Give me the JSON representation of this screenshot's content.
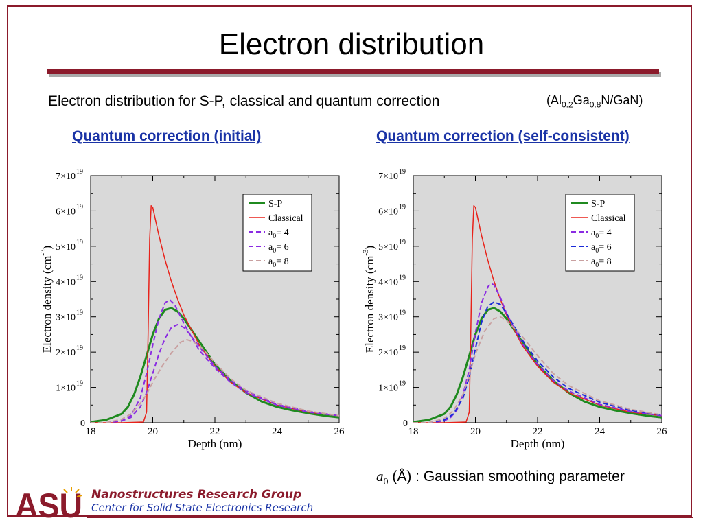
{
  "slide": {
    "title": "Electron distribution",
    "subtitle": "Electron distribution for S-P, classical and quantum correction",
    "formula": {
      "open": "(Al",
      "sub1": "0.2",
      "mid": "Ga",
      "sub2": "0.8",
      "close": "N/GaN)"
    },
    "heading_left": "Quantum correction (initial)",
    "heading_right": "Quantum correction (self-consistent)",
    "note": {
      "symbol": "a",
      "symbol_sub": "0",
      "text": " (Å) : Gaussian smoothing parameter"
    },
    "footer": {
      "logo": "ASU",
      "group": "Nanostructures Research Group",
      "center": "Center for Solid State Electronics Research"
    }
  },
  "colors": {
    "accent": "#8b1a2b",
    "heading_blue": "#1a33a6",
    "plot_bg": "#d9d9d9",
    "sp": "#1f8a1f",
    "classical": "#e8221a",
    "a4": "#8a2be2",
    "a6_left": "#8a2be2",
    "a6_right": "#1a2bd9",
    "a8": "#c9a0a0"
  },
  "chart_data": [
    {
      "type": "line",
      "xlabel": "Depth (nm)",
      "ylabel": "Electron density (cm",
      "ylabel_exp": "-3",
      "ylabel_close": ")",
      "xlim": [
        18,
        26
      ],
      "ylim": [
        0,
        7e+19
      ],
      "x_ticks": [
        "18",
        "20",
        "22",
        "24",
        "26"
      ],
      "y_ticks": [
        {
          "mant": "0",
          "exp": ""
        },
        {
          "mant": "1×10",
          "exp": "19"
        },
        {
          "mant": "2×10",
          "exp": "19"
        },
        {
          "mant": "3×10",
          "exp": "19"
        },
        {
          "mant": "4×10",
          "exp": "19"
        },
        {
          "mant": "5×10",
          "exp": "19"
        },
        {
          "mant": "6×10",
          "exp": "19"
        },
        {
          "mant": "7×10",
          "exp": "19"
        }
      ],
      "legend_position": "top-right",
      "series": [
        {
          "name": "S-P",
          "style": "solid",
          "x": [
            18.0,
            18.5,
            19.0,
            19.2,
            19.4,
            19.6,
            19.8,
            20.0,
            20.2,
            20.4,
            20.6,
            20.8,
            21.0,
            21.5,
            22.0,
            22.5,
            23.0,
            23.5,
            24.0,
            24.5,
            25.0,
            25.5,
            26.0
          ],
          "y": [
            2e+17,
            8e+17,
            2.5e+18,
            4.5e+18,
            8e+18,
            1.3e+19,
            1.9e+19,
            2.5e+19,
            2.95e+19,
            3.2e+19,
            3.25e+19,
            3.15e+19,
            2.95e+19,
            2.3e+19,
            1.65e+19,
            1.2e+19,
            8.5e+18,
            6e+18,
            4.5e+18,
            3.5e+18,
            2.7e+18,
            2e+18,
            1.5e+18
          ]
        },
        {
          "name": "Classical",
          "style": "solid",
          "x": [
            18.0,
            19.0,
            19.7,
            19.8,
            19.85,
            19.9,
            19.95,
            20.0,
            20.2,
            20.4,
            20.6,
            20.8,
            21.0,
            21.5,
            22.0,
            22.5,
            23.0,
            24.0,
            25.0,
            26.0
          ],
          "y": [
            0,
            0,
            2e+17,
            3e+18,
            2.5e+19,
            5.2e+19,
            6.15e+19,
            6.1e+19,
            5.3e+19,
            4.6e+19,
            4e+19,
            3.5e+19,
            3.05e+19,
            2.2e+19,
            1.6e+19,
            1.15e+19,
            8.5e+18,
            5e+18,
            3e+18,
            2e+18
          ]
        },
        {
          "name": "a0= 4",
          "style": "dashed",
          "x": [
            18.0,
            18.5,
            19.0,
            19.3,
            19.6,
            19.8,
            20.0,
            20.2,
            20.4,
            20.55,
            20.7,
            20.9,
            21.1,
            21.5,
            22.0,
            22.5,
            23.0,
            24.0,
            25.0,
            26.0
          ],
          "y": [
            0,
            0,
            5e+17,
            2e+18,
            7e+18,
            1.4e+19,
            2.2e+19,
            2.95e+19,
            3.4e+19,
            3.48e+19,
            3.35e+19,
            3e+19,
            2.65e+19,
            2.05e+19,
            1.55e+19,
            1.15e+19,
            8.5e+18,
            5e+18,
            3e+18,
            2e+18
          ]
        },
        {
          "name": "a0= 6",
          "style": "dashed",
          "x": [
            18.0,
            18.5,
            19.0,
            19.3,
            19.6,
            19.8,
            20.0,
            20.2,
            20.4,
            20.6,
            20.8,
            21.0,
            21.2,
            21.5,
            22.0,
            22.5,
            23.0,
            24.0,
            25.0,
            26.0
          ],
          "y": [
            0,
            0,
            5e+17,
            1.5e+18,
            4.5e+18,
            8.5e+18,
            1.4e+19,
            1.95e+19,
            2.4e+19,
            2.7e+19,
            2.78e+19,
            2.7e+19,
            2.5e+19,
            2.15e+19,
            1.6e+19,
            1.2e+19,
            9e+18,
            5.2e+18,
            3.2e+18,
            2e+18
          ]
        },
        {
          "name": "a0= 8",
          "style": "dashed",
          "x": [
            18.0,
            18.5,
            19.0,
            19.3,
            19.6,
            19.8,
            20.0,
            20.3,
            20.6,
            20.9,
            21.1,
            21.3,
            21.6,
            22.0,
            22.5,
            23.0,
            24.0,
            25.0,
            26.0
          ],
          "y": [
            0,
            0,
            1e+18,
            2.5e+18,
            5.5e+18,
            8e+18,
            1.15e+19,
            1.6e+19,
            1.98e+19,
            2.28e+19,
            2.35e+19,
            2.3e+19,
            2.1e+19,
            1.7e+19,
            1.25e+19,
            9.2e+18,
            5.5e+18,
            3.3e+18,
            2e+18
          ]
        }
      ]
    },
    {
      "type": "line",
      "xlabel": "Depth (nm)",
      "ylabel": "Electron density (cm",
      "ylabel_exp": "-3",
      "ylabel_close": ")",
      "xlim": [
        18,
        26
      ],
      "ylim": [
        0,
        7e+19
      ],
      "x_ticks": [
        "18",
        "20",
        "22",
        "24",
        "26"
      ],
      "y_ticks": [
        {
          "mant": "0",
          "exp": ""
        },
        {
          "mant": "1×10",
          "exp": "19"
        },
        {
          "mant": "2×10",
          "exp": "19"
        },
        {
          "mant": "3×10",
          "exp": "19"
        },
        {
          "mant": "4×10",
          "exp": "19"
        },
        {
          "mant": "5×10",
          "exp": "19"
        },
        {
          "mant": "6×10",
          "exp": "19"
        },
        {
          "mant": "7×10",
          "exp": "19"
        }
      ],
      "legend_position": "top-right",
      "series": [
        {
          "name": "S-P",
          "style": "solid",
          "x": [
            18.0,
            18.5,
            19.0,
            19.2,
            19.4,
            19.6,
            19.8,
            20.0,
            20.2,
            20.4,
            20.6,
            20.8,
            21.0,
            21.5,
            22.0,
            22.5,
            23.0,
            23.5,
            24.0,
            24.5,
            25.0,
            25.5,
            26.0
          ],
          "y": [
            2e+17,
            8e+17,
            2.5e+18,
            4.5e+18,
            8e+18,
            1.3e+19,
            1.9e+19,
            2.5e+19,
            2.95e+19,
            3.2e+19,
            3.25e+19,
            3.15e+19,
            2.95e+19,
            2.3e+19,
            1.65e+19,
            1.2e+19,
            8.5e+18,
            6e+18,
            4.5e+18,
            3.5e+18,
            2.7e+18,
            2e+18,
            1.5e+18
          ]
        },
        {
          "name": "Classical",
          "style": "solid",
          "x": [
            18.0,
            19.0,
            19.7,
            19.8,
            19.85,
            19.9,
            19.95,
            20.0,
            20.2,
            20.4,
            20.6,
            20.8,
            21.0,
            21.5,
            22.0,
            22.5,
            23.0,
            24.0,
            25.0,
            26.0
          ],
          "y": [
            0,
            0,
            2e+17,
            3e+18,
            2.5e+19,
            5.2e+19,
            6.15e+19,
            6.1e+19,
            5.3e+19,
            4.6e+19,
            4e+19,
            3.5e+19,
            3.05e+19,
            2.2e+19,
            1.6e+19,
            1.15e+19,
            8.5e+18,
            5e+18,
            3e+18,
            2e+18
          ]
        },
        {
          "name": "a0= 4",
          "style": "dashed",
          "x": [
            18.0,
            18.5,
            19.0,
            19.2,
            19.4,
            19.6,
            19.8,
            20.0,
            20.2,
            20.4,
            20.5,
            20.6,
            20.8,
            21.0,
            21.5,
            22.0,
            22.5,
            23.0,
            24.0,
            25.0,
            26.0
          ],
          "y": [
            0,
            0,
            5e+17,
            1.5e+18,
            3.5e+18,
            8e+18,
            1.5e+19,
            2.55e+19,
            3.4e+19,
            3.85e+19,
            3.95e+19,
            3.9e+19,
            3.55e+19,
            3.1e+19,
            2.25e+19,
            1.65e+19,
            1.2e+19,
            9e+18,
            5.2e+18,
            3.2e+18,
            2e+18
          ]
        },
        {
          "name": "a0= 6",
          "style": "dashed",
          "x": [
            18.0,
            18.5,
            19.0,
            19.3,
            19.6,
            19.8,
            20.0,
            20.2,
            20.4,
            20.6,
            20.8,
            21.0,
            21.5,
            22.0,
            22.5,
            23.0,
            24.0,
            25.0,
            26.0
          ],
          "y": [
            0,
            0,
            8e+17,
            2.5e+18,
            7e+18,
            1.3e+19,
            2.1e+19,
            2.85e+19,
            3.3e+19,
            3.42e+19,
            3.35e+19,
            3.1e+19,
            2.35e+19,
            1.75e+19,
            1.3e+19,
            9.7e+18,
            5.8e+18,
            3.5e+18,
            2.2e+18
          ]
        },
        {
          "name": "a0= 8",
          "style": "dashed",
          "x": [
            18.0,
            18.5,
            19.0,
            19.3,
            19.6,
            19.8,
            20.0,
            20.3,
            20.6,
            20.8,
            21.0,
            21.5,
            22.0,
            22.5,
            23.0,
            24.0,
            25.0,
            26.0
          ],
          "y": [
            0,
            0,
            1.2e+18,
            3.5e+18,
            8e+18,
            1.35e+19,
            1.95e+19,
            2.6e+19,
            2.95e+19,
            3e+19,
            2.9e+19,
            2.45e+19,
            1.9e+19,
            1.4e+19,
            1.05e+19,
            6.2e+18,
            3.8e+18,
            2.2e+18
          ]
        }
      ]
    }
  ]
}
